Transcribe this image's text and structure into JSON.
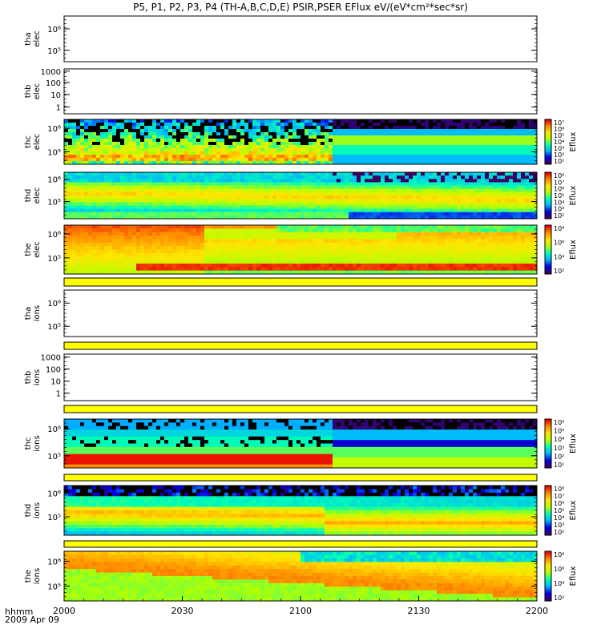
{
  "chart_data": {
    "type": "heatmap",
    "title": "P5, P1, P2, P3, P4 (TH-A,B,C,D,E) PSIR,PSER EFlux eV/(eV*cm²*sec*sr)",
    "x_axis": {
      "label_line1": "hhmm",
      "label_line2": "2009 Apr 09",
      "tick_labels": [
        "2000",
        "2030",
        "2100",
        "2130",
        "2200"
      ],
      "range_minutes": [
        0,
        120
      ]
    },
    "panels": [
      {
        "id": "tha-elec",
        "ylabel": [
          "tha",
          "elec"
        ],
        "kind": "empty",
        "yticks": [
          {
            "label": "10⁶",
            "frac": 0.28
          },
          {
            "label": "10⁵",
            "frac": 0.75
          }
        ]
      },
      {
        "id": "thb-elec",
        "ylabel": [
          "thb",
          "elec"
        ],
        "kind": "empty",
        "yticks": [
          {
            "label": "1000",
            "frac": 0.05
          },
          {
            "label": "100",
            "frac": 0.3
          },
          {
            "label": "10",
            "frac": 0.57
          },
          {
            "label": "1",
            "frac": 0.85
          }
        ]
      },
      {
        "id": "thc-elec",
        "ylabel": [
          "thc",
          "elec"
        ],
        "kind": "spectrogram",
        "profile": "thc_elec",
        "yticks": [
          {
            "label": "10⁶",
            "frac": 0.2
          },
          {
            "label": "10⁵",
            "frac": 0.72
          }
        ],
        "colorbar": {
          "label": "Eflux",
          "ticks": [
            "10⁷",
            "10⁶",
            "10⁵",
            "10⁴",
            "10³",
            "10²",
            "10¹"
          ],
          "max_exp": 7,
          "min_exp": 1
        }
      },
      {
        "id": "thd-elec",
        "ylabel": [
          "thd",
          "elec"
        ],
        "kind": "spectrogram",
        "profile": "thd_elec",
        "yticks": [
          {
            "label": "10⁶",
            "frac": 0.15
          },
          {
            "label": "10⁵",
            "frac": 0.63
          }
        ],
        "colorbar": {
          "label": "Eflux",
          "ticks": [
            "10⁸",
            "10⁷",
            "10⁶",
            "10⁵",
            "10⁴",
            "10³",
            "10²"
          ],
          "max_exp": 8,
          "min_exp": 2
        }
      },
      {
        "id": "the-elec",
        "ylabel": [
          "the",
          "elec"
        ],
        "kind": "spectrogram",
        "profile": "the_elec",
        "yticks": [
          {
            "label": "10⁶",
            "frac": 0.18
          },
          {
            "label": "10⁵",
            "frac": 0.67
          }
        ],
        "colorbar": {
          "label": "Eflux",
          "ticks": [
            "10⁸",
            "10⁶",
            "10⁴",
            "10²"
          ],
          "max_exp": 8,
          "min_exp": 1
        }
      },
      {
        "id": "sep-1",
        "kind": "bar"
      },
      {
        "id": "tha-ions",
        "ylabel": [
          "tha",
          "ions"
        ],
        "kind": "empty",
        "yticks": [
          {
            "label": "10⁶",
            "frac": 0.28
          },
          {
            "label": "10⁵",
            "frac": 0.78
          }
        ]
      },
      {
        "id": "sep-2",
        "kind": "bar"
      },
      {
        "id": "thb-ions",
        "ylabel": [
          "thb",
          "ions"
        ],
        "kind": "empty",
        "yticks": [
          {
            "label": "1000",
            "frac": 0.06
          },
          {
            "label": "100",
            "frac": 0.32
          },
          {
            "label": "10",
            "frac": 0.58
          },
          {
            "label": "1",
            "frac": 0.84
          }
        ]
      },
      {
        "id": "sep-3",
        "kind": "bar"
      },
      {
        "id": "thc-ions",
        "ylabel": [
          "thc",
          "ions"
        ],
        "kind": "spectrogram",
        "profile": "thc_ions",
        "yticks": [
          {
            "label": "10⁶",
            "frac": 0.2
          },
          {
            "label": "10⁵",
            "frac": 0.75
          }
        ],
        "colorbar": {
          "label": "Eflux",
          "ticks": [
            "10⁶",
            "10⁵",
            "10⁴",
            "10³",
            "10²",
            "10¹"
          ],
          "max_exp": 6,
          "min_exp": 1
        }
      },
      {
        "id": "sep-4",
        "kind": "bar"
      },
      {
        "id": "thd-ions",
        "ylabel": [
          "thd",
          "ions"
        ],
        "kind": "spectrogram",
        "profile": "thd_ions",
        "yticks": [
          {
            "label": "10⁶",
            "frac": 0.15
          },
          {
            "label": "10⁵",
            "frac": 0.63
          }
        ],
        "colorbar": {
          "label": "Eflux",
          "ticks": [
            "10⁸",
            "10⁷",
            "10⁶",
            "10⁵",
            "10⁴",
            "10³",
            "10²"
          ],
          "max_exp": 8,
          "min_exp": 2
        }
      },
      {
        "id": "sep-5",
        "kind": "bar"
      },
      {
        "id": "the-ions",
        "ylabel": [
          "the",
          "ions"
        ],
        "kind": "spectrogram",
        "profile": "the_ions",
        "yticks": [
          {
            "label": "10⁶",
            "frac": 0.2
          },
          {
            "label": "10⁵",
            "frac": 0.7
          }
        ],
        "colorbar": {
          "label": "Eflux",
          "ticks": [
            "10⁸",
            "10⁶",
            "10⁴",
            "10²"
          ],
          "max_exp": 8,
          "min_exp": 1
        }
      }
    ],
    "colormap": [
      "#3c0064",
      "#0000e6",
      "#00b4ff",
      "#00ffb4",
      "#b4ff00",
      "#ffe600",
      "#ff8c00",
      "#e60000"
    ],
    "separator_bar_color": "#ffff00"
  }
}
